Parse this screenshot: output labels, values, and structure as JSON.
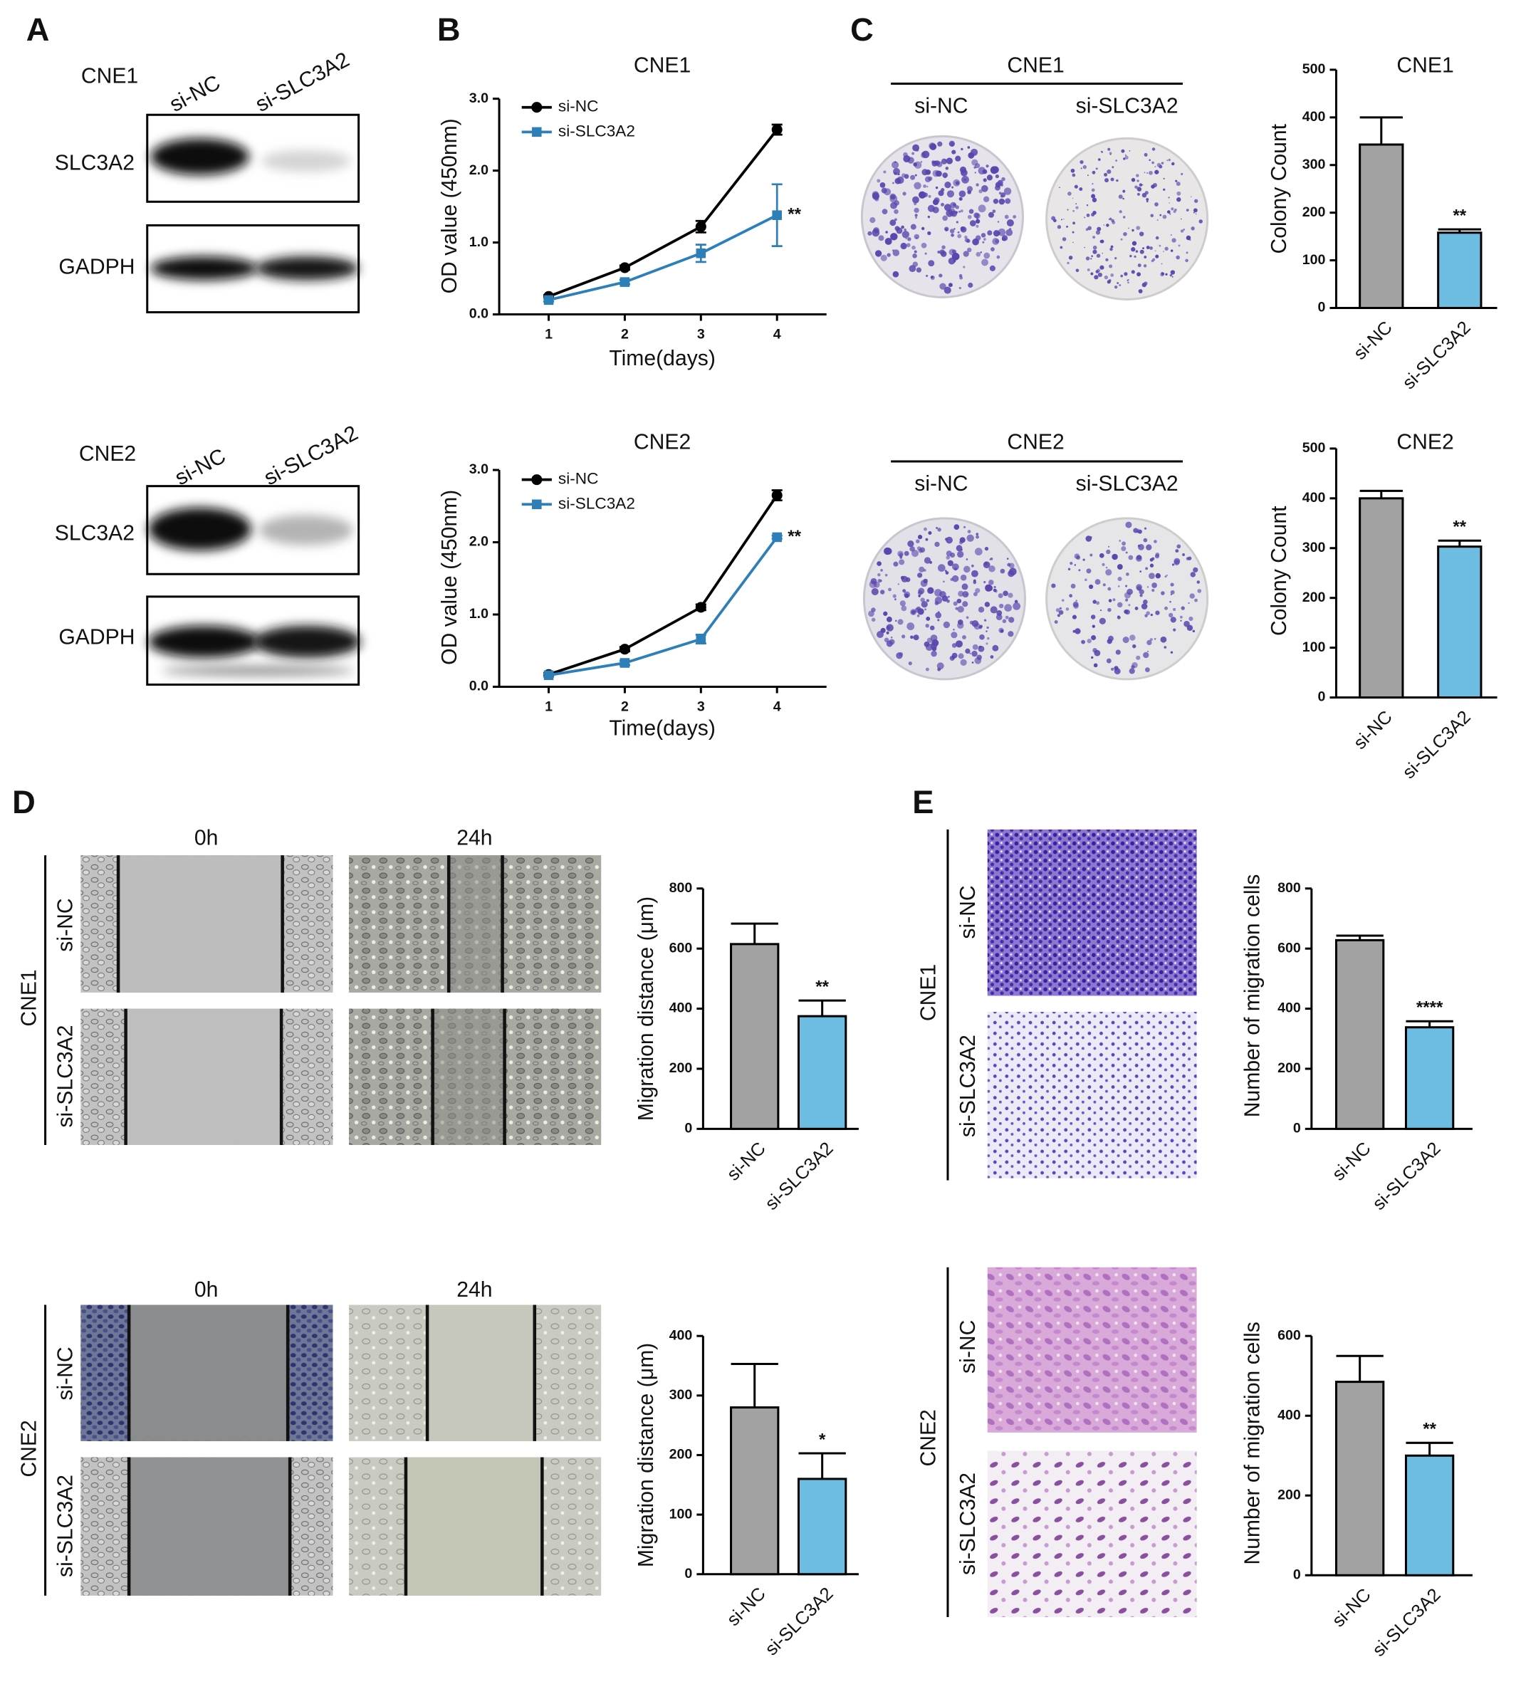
{
  "panels": {
    "letters": [
      "A",
      "B",
      "C",
      "D",
      "E"
    ]
  },
  "blots": [
    {
      "cell": "CNE1",
      "lanes": [
        "si-NC",
        "si-SLC3A2"
      ],
      "proteins": [
        "SLC3A2",
        "GADPH"
      ]
    },
    {
      "cell": "CNE2",
      "lanes": [
        "si-NC",
        "si-SLC3A2"
      ],
      "proteins": [
        "SLC3A2",
        "GADPH"
      ]
    }
  ],
  "plates": [
    {
      "cell": "CNE1",
      "groups": [
        "si-NC",
        "si-SLC3A2"
      ]
    },
    {
      "cell": "CNE2",
      "groups": [
        "si-NC",
        "si-SLC3A2"
      ]
    }
  ],
  "wound": [
    {
      "cell": "CNE1",
      "times": [
        "0h",
        "24h"
      ],
      "groups": [
        "si-NC",
        "si-SLC3A2"
      ]
    },
    {
      "cell": "CNE2",
      "times": [
        "0h",
        "24h"
      ],
      "groups": [
        "si-NC",
        "si-SLC3A2"
      ]
    }
  ],
  "transwell": [
    {
      "cell": "CNE1",
      "groups": [
        "si-NC",
        "si-SLC3A2"
      ]
    },
    {
      "cell": "CNE2",
      "groups": [
        "si-NC",
        "si-SLC3A2"
      ]
    }
  ],
  "chart_data": [
    {
      "type": "line",
      "title": "CNE1",
      "x_label": "Time(days)",
      "y_label": "OD value (450nm)",
      "x": [
        1,
        2,
        3,
        4
      ],
      "xlim": [
        0.35,
        4.65
      ],
      "xticks": [
        1,
        2,
        3,
        4
      ],
      "ylim": [
        0,
        3
      ],
      "yticks": [
        {
          "value": 0,
          "label": "0.0"
        },
        {
          "value": 1,
          "label": "1.0"
        },
        {
          "value": 2,
          "label": "2.0"
        },
        {
          "value": 3,
          "label": "3.0"
        }
      ],
      "series": [
        {
          "name": "si-NC",
          "color": "#000000",
          "marker": "circle",
          "values": [
            0.25,
            0.65,
            1.22,
            2.57
          ],
          "errors": [
            0.02,
            0.03,
            0.08,
            0.07
          ]
        },
        {
          "name": "si-SLC3A2",
          "color": "#2e7fb8",
          "marker": "square",
          "values": [
            0.2,
            0.45,
            0.85,
            1.38
          ],
          "errors": [
            0.02,
            0.03,
            0.12,
            0.43
          ]
        }
      ],
      "annotation": "**"
    },
    {
      "type": "line",
      "title": "CNE2",
      "x_label": "Time(days)",
      "y_label": "OD value (450nm)",
      "x": [
        1,
        2,
        3,
        4
      ],
      "xlim": [
        0.35,
        4.65
      ],
      "xticks": [
        1,
        2,
        3,
        4
      ],
      "ylim": [
        0,
        3
      ],
      "yticks": [
        {
          "value": 0,
          "label": "0.0"
        },
        {
          "value": 1,
          "label": "1.0"
        },
        {
          "value": 2,
          "label": "2.0"
        },
        {
          "value": 3,
          "label": "3.0"
        }
      ],
      "series": [
        {
          "name": "si-NC",
          "color": "#000000",
          "marker": "circle",
          "values": [
            0.17,
            0.52,
            1.1,
            2.65
          ],
          "errors": [
            0.02,
            0.03,
            0.04,
            0.07
          ]
        },
        {
          "name": "si-SLC3A2",
          "color": "#2e7fb8",
          "marker": "square",
          "values": [
            0.16,
            0.33,
            0.66,
            2.07
          ],
          "errors": [
            0.02,
            0.03,
            0.06,
            0.02
          ]
        }
      ],
      "annotation": "**"
    },
    {
      "type": "bar",
      "title": "CNE1",
      "y_label": "Colony Count",
      "categories": [
        "si-NC",
        "si-SLC3A2"
      ],
      "values": [
        343,
        158
      ],
      "errors": [
        57,
        7
      ],
      "colors": [
        "#a2a2a2",
        "#6dbde2"
      ],
      "ylim": [
        0,
        500
      ],
      "yticks": [
        0,
        100,
        200,
        300,
        400,
        500
      ],
      "annotation": "**"
    },
    {
      "type": "bar",
      "title": "CNE2",
      "y_label": "Colony Count",
      "categories": [
        "si-NC",
        "si-SLC3A2"
      ],
      "values": [
        400,
        303
      ],
      "errors": [
        15,
        12
      ],
      "colors": [
        "#a2a2a2",
        "#6dbde2"
      ],
      "ylim": [
        0,
        500
      ],
      "yticks": [
        0,
        100,
        200,
        300,
        400,
        500
      ],
      "annotation": "**"
    },
    {
      "type": "bar",
      "y_label": "Migration distance (μm)",
      "categories": [
        "si-NC",
        "si-SLC3A2"
      ],
      "values": [
        615,
        375
      ],
      "errors": [
        68,
        52
      ],
      "colors": [
        "#a2a2a2",
        "#6dbde2"
      ],
      "ylim": [
        0,
        800
      ],
      "yticks": [
        0,
        200,
        400,
        600,
        800
      ],
      "annotation": "**"
    },
    {
      "type": "bar",
      "y_label": "Migration distance (μm)",
      "categories": [
        "si-NC",
        "si-SLC3A2"
      ],
      "values": [
        280,
        160
      ],
      "errors": [
        73,
        43
      ],
      "colors": [
        "#a2a2a2",
        "#6dbde2"
      ],
      "ylim": [
        0,
        400
      ],
      "yticks": [
        0,
        100,
        200,
        300,
        400
      ],
      "annotation": "*"
    },
    {
      "type": "bar",
      "y_label": "Number of migration cells",
      "categories": [
        "si-NC",
        "si-SLC3A2"
      ],
      "values": [
        628,
        338
      ],
      "errors": [
        15,
        20
      ],
      "colors": [
        "#a2a2a2",
        "#6dbde2"
      ],
      "ylim": [
        0,
        800
      ],
      "yticks": [
        0,
        200,
        400,
        600,
        800
      ],
      "annotation": "****"
    },
    {
      "type": "bar",
      "y_label": "Number of migration cells",
      "categories": [
        "si-NC",
        "si-SLC3A2"
      ],
      "values": [
        485,
        300
      ],
      "errors": [
        65,
        32
      ],
      "colors": [
        "#a2a2a2",
        "#6dbde2"
      ],
      "ylim": [
        0,
        600
      ],
      "yticks": [
        0,
        200,
        400,
        600
      ],
      "annotation": "**"
    }
  ]
}
